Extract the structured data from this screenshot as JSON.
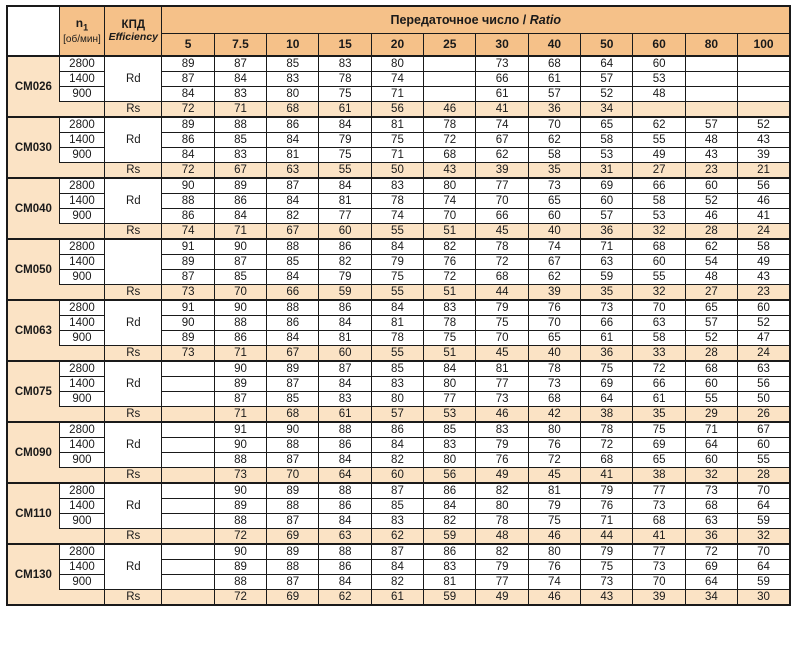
{
  "colors": {
    "header_orange": "#f5c189",
    "light_peach": "#fbe3c5",
    "border": "#1a1a1a",
    "text": "#1a1a1a"
  },
  "header": {
    "n1_base": "n",
    "n1_sub": "1",
    "n1_unit": "[об/мин]",
    "kpd_ru": "КПД",
    "kpd_en": "Efficiency",
    "ratio_title_ru": "Передаточное число",
    "ratio_title_sep": " / ",
    "ratio_title_en": "Ratio",
    "ratios": [
      "5",
      "7.5",
      "10",
      "15",
      "20",
      "25",
      "30",
      "40",
      "50",
      "60",
      "80",
      "100"
    ]
  },
  "models": [
    {
      "name": "CM026",
      "efficiency_label": "Rd",
      "rs_label": "Rs",
      "speed_rows": [
        {
          "speed": "2800",
          "values": [
            "89",
            "87",
            "85",
            "83",
            "80",
            "",
            "73",
            "68",
            "64",
            "60",
            "",
            ""
          ]
        },
        {
          "speed": "1400",
          "values": [
            "87",
            "84",
            "83",
            "78",
            "74",
            "",
            "66",
            "61",
            "57",
            "53",
            "",
            ""
          ]
        },
        {
          "speed": "900",
          "values": [
            "84",
            "83",
            "80",
            "75",
            "71",
            "",
            "61",
            "57",
            "52",
            "48",
            "",
            ""
          ]
        }
      ],
      "rs_values": [
        "72",
        "71",
        "68",
        "61",
        "56",
        "46",
        "41",
        "36",
        "34",
        "",
        "",
        ""
      ]
    },
    {
      "name": "CM030",
      "efficiency_label": "Rd",
      "rs_label": "Rs",
      "speed_rows": [
        {
          "speed": "2800",
          "values": [
            "89",
            "88",
            "86",
            "84",
            "81",
            "78",
            "74",
            "70",
            "65",
            "62",
            "57",
            "52"
          ]
        },
        {
          "speed": "1400",
          "values": [
            "86",
            "85",
            "84",
            "79",
            "75",
            "72",
            "67",
            "62",
            "58",
            "55",
            "48",
            "43"
          ]
        },
        {
          "speed": "900",
          "values": [
            "84",
            "83",
            "81",
            "75",
            "71",
            "68",
            "62",
            "58",
            "53",
            "49",
            "43",
            "39"
          ]
        }
      ],
      "rs_values": [
        "72",
        "67",
        "63",
        "55",
        "50",
        "43",
        "39",
        "35",
        "31",
        "27",
        "23",
        "21"
      ]
    },
    {
      "name": "CM040",
      "efficiency_label": "Rd",
      "rs_label": "Rs",
      "speed_rows": [
        {
          "speed": "2800",
          "values": [
            "90",
            "89",
            "87",
            "84",
            "83",
            "80",
            "77",
            "73",
            "69",
            "66",
            "60",
            "56"
          ]
        },
        {
          "speed": "1400",
          "values": [
            "88",
            "86",
            "84",
            "81",
            "78",
            "74",
            "70",
            "65",
            "60",
            "58",
            "52",
            "46"
          ]
        },
        {
          "speed": "900",
          "values": [
            "86",
            "84",
            "82",
            "77",
            "74",
            "70",
            "66",
            "60",
            "57",
            "53",
            "46",
            "41"
          ]
        }
      ],
      "rs_values": [
        "74",
        "71",
        "67",
        "60",
        "55",
        "51",
        "45",
        "40",
        "36",
        "32",
        "28",
        "24"
      ]
    },
    {
      "name": "CM050",
      "efficiency_label": "",
      "rs_label": "Rs",
      "speed_rows": [
        {
          "speed": "2800",
          "values": [
            "91",
            "90",
            "88",
            "86",
            "84",
            "82",
            "78",
            "74",
            "71",
            "68",
            "62",
            "58"
          ]
        },
        {
          "speed": "1400",
          "values": [
            "89",
            "87",
            "85",
            "82",
            "79",
            "76",
            "72",
            "67",
            "63",
            "60",
            "54",
            "49"
          ]
        },
        {
          "speed": "900",
          "values": [
            "87",
            "85",
            "84",
            "79",
            "75",
            "72",
            "68",
            "62",
            "59",
            "55",
            "48",
            "43"
          ]
        }
      ],
      "rs_values": [
        "73",
        "70",
        "66",
        "59",
        "55",
        "51",
        "44",
        "39",
        "35",
        "32",
        "27",
        "23"
      ]
    },
    {
      "name": "CM063",
      "efficiency_label": "Rd",
      "rs_label": "Rs",
      "speed_rows": [
        {
          "speed": "2800",
          "values": [
            "91",
            "90",
            "88",
            "86",
            "84",
            "83",
            "79",
            "76",
            "73",
            "70",
            "65",
            "60"
          ]
        },
        {
          "speed": "1400",
          "values": [
            "90",
            "88",
            "86",
            "84",
            "81",
            "78",
            "75",
            "70",
            "66",
            "63",
            "57",
            "52"
          ]
        },
        {
          "speed": "900",
          "values": [
            "89",
            "86",
            "84",
            "81",
            "78",
            "75",
            "70",
            "65",
            "61",
            "58",
            "52",
            "47"
          ]
        }
      ],
      "rs_values": [
        "73",
        "71",
        "67",
        "60",
        "55",
        "51",
        "45",
        "40",
        "36",
        "33",
        "28",
        "24"
      ]
    },
    {
      "name": "CM075",
      "efficiency_label": "Rd",
      "rs_label": "Rs",
      "speed_rows": [
        {
          "speed": "2800",
          "values": [
            "",
            "90",
            "89",
            "87",
            "85",
            "84",
            "81",
            "78",
            "75",
            "72",
            "68",
            "63"
          ]
        },
        {
          "speed": "1400",
          "values": [
            "",
            "89",
            "87",
            "84",
            "83",
            "80",
            "77",
            "73",
            "69",
            "66",
            "60",
            "56"
          ]
        },
        {
          "speed": "900",
          "values": [
            "",
            "87",
            "85",
            "83",
            "80",
            "77",
            "73",
            "68",
            "64",
            "61",
            "55",
            "50"
          ]
        }
      ],
      "rs_values": [
        "",
        "71",
        "68",
        "61",
        "57",
        "53",
        "46",
        "42",
        "38",
        "35",
        "29",
        "26"
      ]
    },
    {
      "name": "CM090",
      "efficiency_label": "Rd",
      "rs_label": "Rs",
      "speed_rows": [
        {
          "speed": "2800",
          "values": [
            "",
            "91",
            "90",
            "88",
            "86",
            "85",
            "83",
            "80",
            "78",
            "75",
            "71",
            "67"
          ]
        },
        {
          "speed": "1400",
          "values": [
            "",
            "90",
            "88",
            "86",
            "84",
            "83",
            "79",
            "76",
            "72",
            "69",
            "64",
            "60"
          ]
        },
        {
          "speed": "900",
          "values": [
            "",
            "88",
            "87",
            "84",
            "82",
            "80",
            "76",
            "72",
            "68",
            "65",
            "60",
            "55"
          ]
        }
      ],
      "rs_values": [
        "",
        "73",
        "70",
        "64",
        "60",
        "56",
        "49",
        "45",
        "41",
        "38",
        "32",
        "28"
      ]
    },
    {
      "name": "CM110",
      "efficiency_label": "Rd",
      "rs_label": "Rs",
      "speed_rows": [
        {
          "speed": "2800",
          "values": [
            "",
            "90",
            "89",
            "88",
            "87",
            "86",
            "82",
            "81",
            "79",
            "77",
            "73",
            "70"
          ]
        },
        {
          "speed": "1400",
          "values": [
            "",
            "89",
            "88",
            "86",
            "85",
            "84",
            "80",
            "79",
            "76",
            "73",
            "68",
            "64"
          ]
        },
        {
          "speed": "900",
          "values": [
            "",
            "88",
            "87",
            "84",
            "83",
            "82",
            "78",
            "75",
            "71",
            "68",
            "63",
            "59"
          ]
        }
      ],
      "rs_values": [
        "",
        "72",
        "69",
        "63",
        "62",
        "59",
        "48",
        "46",
        "44",
        "41",
        "36",
        "32"
      ]
    },
    {
      "name": "CM130",
      "efficiency_label": "Rd",
      "rs_label": "Rs",
      "speed_rows": [
        {
          "speed": "2800",
          "values": [
            "",
            "90",
            "89",
            "88",
            "87",
            "86",
            "82",
            "80",
            "79",
            "77",
            "72",
            "70"
          ]
        },
        {
          "speed": "1400",
          "values": [
            "",
            "89",
            "88",
            "86",
            "84",
            "83",
            "79",
            "76",
            "75",
            "73",
            "69",
            "64"
          ]
        },
        {
          "speed": "900",
          "values": [
            "",
            "88",
            "87",
            "84",
            "82",
            "81",
            "77",
            "74",
            "73",
            "70",
            "64",
            "59"
          ]
        }
      ],
      "rs_values": [
        "",
        "72",
        "69",
        "62",
        "61",
        "59",
        "49",
        "46",
        "43",
        "39",
        "34",
        "30"
      ]
    }
  ]
}
